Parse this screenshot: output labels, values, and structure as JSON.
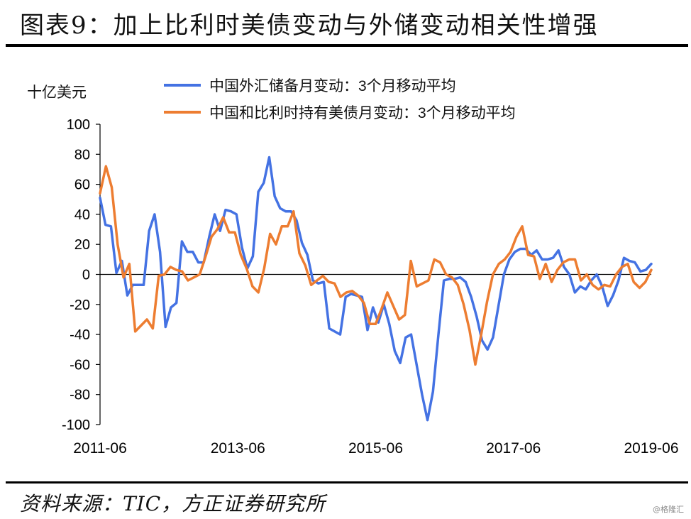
{
  "title": "图表9：加上比利时美债变动与外储变动相关性增强",
  "source": "资料来源：TIC，方正证券研究所",
  "watermark": "@格隆汇",
  "chart_data": {
    "type": "line",
    "unit_label": "十亿美元",
    "ylim": [
      -100,
      100
    ],
    "y_ticks": [
      -100,
      -80,
      -60,
      -40,
      -20,
      0,
      20,
      40,
      60,
      80,
      100
    ],
    "x_tick_labels": [
      "2011-06",
      "2013-06",
      "2015-06",
      "2017-06",
      "2019-06"
    ],
    "x_start": "2011-06",
    "x_end": "2019-06",
    "legend_position": "top",
    "series": [
      {
        "name": "中国外汇储备月变动：3个月移动平均",
        "color": "#4472e3",
        "values": [
          51,
          33,
          32,
          1,
          9,
          -14,
          -7,
          -7,
          -7,
          29,
          40,
          15,
          -35,
          -22,
          -19,
          22,
          15,
          15,
          8,
          8,
          25,
          40,
          29,
          43,
          42,
          40,
          18,
          4,
          12,
          55,
          61,
          78,
          52,
          44,
          42,
          42,
          36,
          21,
          13,
          -4,
          -6,
          -5,
          -36,
          -38,
          -40,
          -15,
          -13,
          -14,
          -15,
          -37,
          -22,
          -32,
          -20,
          -33,
          -51,
          -59,
          -42,
          -40,
          -60,
          -80,
          -97,
          -78,
          -40,
          -4,
          -3,
          -3,
          -2,
          -5,
          -15,
          -28,
          -44,
          -50,
          -42,
          -21,
          0,
          10,
          15,
          17,
          17,
          13,
          16,
          10,
          10,
          11,
          16,
          5,
          0,
          -12,
          -8,
          -10,
          -4,
          0,
          -8,
          -21,
          -14,
          -4,
          11,
          9,
          8,
          2,
          3,
          7
        ]
      },
      {
        "name": "中国和比利时持有美债月变动：3个月移动平均",
        "color": "#ed7d31",
        "values": [
          54,
          72,
          58,
          20,
          -2,
          7,
          -38,
          -34,
          -30,
          -36,
          -1,
          0,
          5,
          3,
          2,
          -4,
          -2,
          0,
          12,
          25,
          30,
          38,
          28,
          28,
          13,
          4,
          -8,
          -12,
          4,
          27,
          20,
          32,
          32,
          42,
          14,
          6,
          -7,
          -4,
          -1,
          -5,
          -6,
          -15,
          -12,
          -11,
          -14,
          -19,
          -33,
          -33,
          -23,
          -12,
          -21,
          -30,
          -27,
          9,
          -8,
          -6,
          -4,
          10,
          8,
          0,
          -2,
          -7,
          -20,
          -37,
          -60,
          -40,
          -18,
          0,
          7,
          10,
          15,
          25,
          32,
          13,
          12,
          -3,
          7,
          -5,
          3,
          8,
          10,
          10,
          -4,
          0,
          -7,
          -10,
          -7,
          -8,
          0,
          5,
          7,
          -5,
          -9,
          -5,
          3
        ]
      }
    ]
  }
}
